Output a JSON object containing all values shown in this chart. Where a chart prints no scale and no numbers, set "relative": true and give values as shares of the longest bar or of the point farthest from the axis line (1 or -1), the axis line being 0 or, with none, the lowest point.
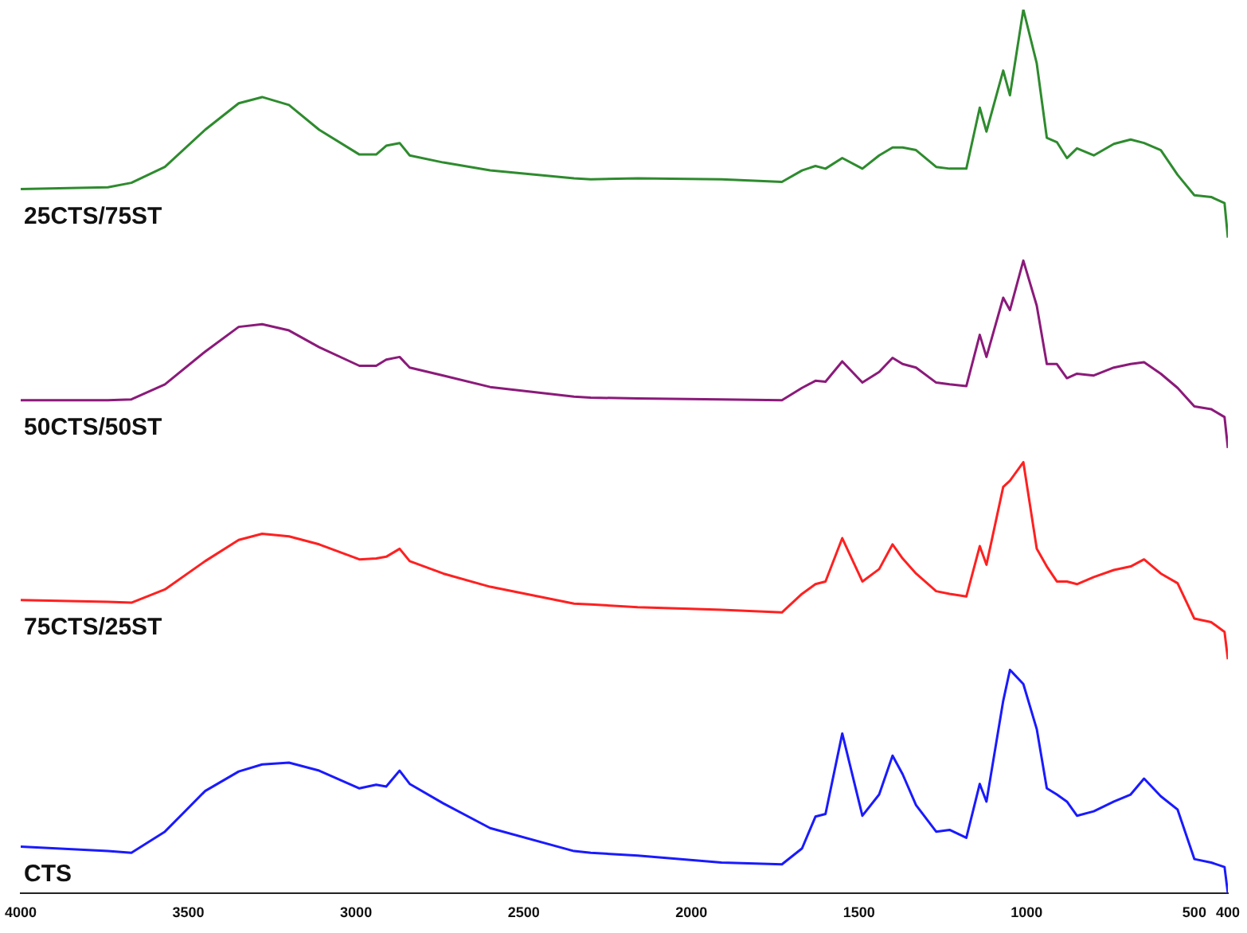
{
  "chart_data": {
    "type": "line",
    "relative": true,
    "legend": false,
    "grid": false,
    "marker": "none",
    "line_style": "solid",
    "tick_labels": "x",
    "x": [
      4000,
      3740,
      3670,
      3570,
      3450,
      3350,
      3280,
      3200,
      3110,
      2990,
      2940,
      2910,
      2870,
      2840,
      2740,
      2600,
      2350,
      2300,
      2160,
      1910,
      1730,
      1670,
      1630,
      1600,
      1550,
      1490,
      1440,
      1400,
      1370,
      1330,
      1270,
      1230,
      1180,
      1140,
      1120,
      1070,
      1050,
      1010,
      970,
      940,
      910,
      880,
      850,
      800,
      740,
      690,
      650,
      600,
      550,
      500,
      450,
      410,
      400
    ],
    "xlim": [
      4000,
      400
    ],
    "xticks": [
      4000,
      3500,
      3000,
      2500,
      2000,
      1500,
      1000,
      500,
      400
    ],
    "series": [
      {
        "name": "25CTS/75ST",
        "color": "#2e8b2e",
        "values": [
          0.797,
          0.799,
          0.804,
          0.822,
          0.864,
          0.894,
          0.901,
          0.892,
          0.864,
          0.836,
          0.836,
          0.846,
          0.849,
          0.835,
          0.827,
          0.818,
          0.809,
          0.808,
          0.809,
          0.808,
          0.805,
          0.818,
          0.823,
          0.82,
          0.832,
          0.82,
          0.835,
          0.844,
          0.844,
          0.841,
          0.822,
          0.82,
          0.82,
          0.889,
          0.862,
          0.931,
          0.903,
          1,
          0.939,
          0.855,
          0.85,
          0.832,
          0.843,
          0.835,
          0.848,
          0.853,
          0.849,
          0.841,
          0.813,
          0.79,
          0.788,
          0.781,
          0.742
        ]
      },
      {
        "name": "50CTS/50ST",
        "color": "#8b1a7a",
        "values": [
          0.558,
          0.558,
          0.559,
          0.576,
          0.613,
          0.641,
          0.644,
          0.637,
          0.618,
          0.597,
          0.597,
          0.604,
          0.607,
          0.595,
          0.586,
          0.573,
          0.562,
          0.561,
          0.56,
          0.559,
          0.558,
          0.572,
          0.58,
          0.579,
          0.602,
          0.578,
          0.59,
          0.606,
          0.599,
          0.595,
          0.578,
          0.576,
          0.574,
          0.632,
          0.607,
          0.674,
          0.66,
          0.716,
          0.665,
          0.599,
          0.599,
          0.583,
          0.588,
          0.586,
          0.595,
          0.599,
          0.601,
          0.588,
          0.572,
          0.551,
          0.548,
          0.539,
          0.504
        ]
      },
      {
        "name": "75CTS/25ST",
        "color": "#ff2020",
        "values": [
          0.332,
          0.33,
          0.329,
          0.344,
          0.376,
          0.4,
          0.407,
          0.404,
          0.395,
          0.378,
          0.379,
          0.381,
          0.39,
          0.376,
          0.362,
          0.347,
          0.328,
          0.327,
          0.324,
          0.321,
          0.318,
          0.339,
          0.35,
          0.353,
          0.402,
          0.353,
          0.367,
          0.395,
          0.379,
          0.362,
          0.342,
          0.339,
          0.336,
          0.393,
          0.372,
          0.46,
          0.467,
          0.488,
          0.39,
          0.37,
          0.353,
          0.353,
          0.35,
          0.358,
          0.366,
          0.37,
          0.378,
          0.362,
          0.351,
          0.311,
          0.307,
          0.296,
          0.265
        ]
      },
      {
        "name": "CTS",
        "color": "#1a1aff",
        "values": [
          0.053,
          0.048,
          0.046,
          0.07,
          0.116,
          0.138,
          0.146,
          0.148,
          0.139,
          0.119,
          0.123,
          0.121,
          0.139,
          0.124,
          0.102,
          0.074,
          0.048,
          0.046,
          0.043,
          0.035,
          0.033,
          0.051,
          0.087,
          0.09,
          0.181,
          0.088,
          0.112,
          0.156,
          0.135,
          0.1,
          0.07,
          0.072,
          0.063,
          0.124,
          0.104,
          0.218,
          0.253,
          0.237,
          0.186,
          0.119,
          0.112,
          0.104,
          0.088,
          0.093,
          0.104,
          0.112,
          0.13,
          0.11,
          0.095,
          0.039,
          0.035,
          0.03,
          0
        ]
      }
    ]
  }
}
